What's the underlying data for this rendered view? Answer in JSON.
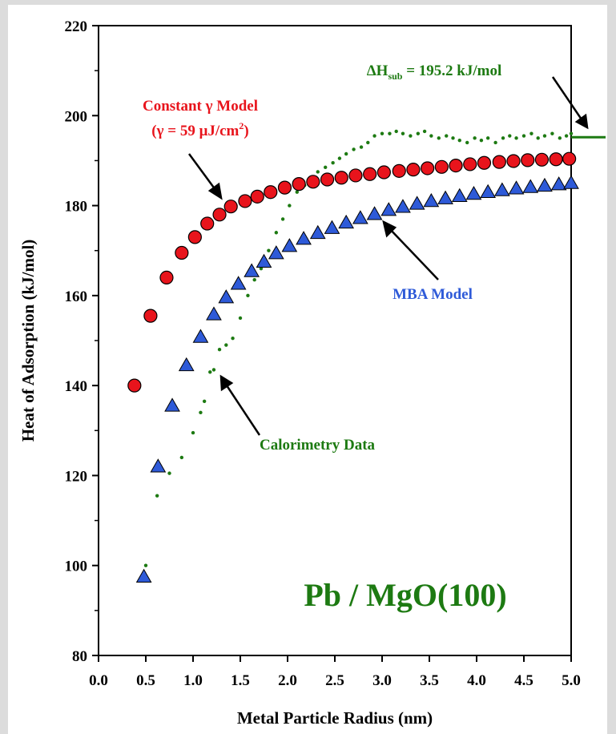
{
  "chart_data": {
    "type": "scatter",
    "xlabel": "Metal Particle Radius (nm)",
    "ylabel": "Heat of Adsorption (kJ/mol)",
    "xlim": [
      0.0,
      5.0
    ],
    "ylim": [
      80,
      220
    ],
    "x_ticks": [
      "0.0",
      "0.5",
      "1.0",
      "1.5",
      "2.0",
      "2.5",
      "3.0",
      "3.5",
      "4.0",
      "4.5",
      "5.0"
    ],
    "y_ticks": [
      "80",
      "100",
      "120",
      "140",
      "160",
      "180",
      "200",
      "220"
    ],
    "grid": false,
    "legend": "none",
    "series": [
      {
        "name": "Constant γ Model",
        "marker": "circle",
        "color": "#e8141c",
        "x": [
          0.38,
          0.55,
          0.72,
          0.88,
          1.02,
          1.15,
          1.28,
          1.4,
          1.55,
          1.68,
          1.82,
          1.97,
          2.12,
          2.27,
          2.42,
          2.57,
          2.72,
          2.87,
          3.02,
          3.18,
          3.33,
          3.48,
          3.63,
          3.78,
          3.93,
          4.08,
          4.24,
          4.39,
          4.54,
          4.69,
          4.84,
          4.98
        ],
        "y": [
          140.0,
          155.5,
          164.0,
          169.5,
          173.0,
          176.0,
          178.0,
          179.8,
          181.0,
          182.0,
          183.0,
          184.0,
          184.8,
          185.3,
          185.8,
          186.2,
          186.7,
          187.0,
          187.4,
          187.7,
          188.0,
          188.3,
          188.6,
          188.9,
          189.2,
          189.5,
          189.7,
          189.9,
          190.1,
          190.2,
          190.3,
          190.4
        ]
      },
      {
        "name": "MBA Model",
        "marker": "triangle",
        "color": "#2e5ad8",
        "x": [
          0.48,
          0.63,
          0.78,
          0.93,
          1.08,
          1.22,
          1.35,
          1.48,
          1.62,
          1.75,
          1.88,
          2.02,
          2.17,
          2.32,
          2.47,
          2.62,
          2.77,
          2.92,
          3.07,
          3.22,
          3.37,
          3.52,
          3.67,
          3.82,
          3.97,
          4.12,
          4.27,
          4.42,
          4.57,
          4.72,
          4.87,
          5.0
        ],
        "y": [
          97.5,
          122.0,
          135.5,
          144.5,
          150.8,
          155.8,
          159.6,
          162.6,
          165.4,
          167.5,
          169.4,
          171.0,
          172.6,
          173.9,
          175.0,
          176.2,
          177.2,
          178.1,
          179.0,
          179.7,
          180.4,
          181.0,
          181.6,
          182.1,
          182.6,
          183.0,
          183.4,
          183.8,
          184.1,
          184.4,
          184.7,
          185.0
        ]
      },
      {
        "name": "Calorimetry Data",
        "marker": "dot",
        "color": "#1d7a12",
        "x": [
          0.5,
          0.62,
          0.75,
          0.88,
          1.0,
          1.08,
          1.12,
          1.18,
          1.22,
          1.28,
          1.35,
          1.42,
          1.5,
          1.58,
          1.65,
          1.72,
          1.8,
          1.88,
          1.95,
          2.02,
          2.1,
          2.18,
          2.25,
          2.32,
          2.4,
          2.48,
          2.55,
          2.62,
          2.7,
          2.78,
          2.85,
          2.92,
          3.0,
          3.08,
          3.15,
          3.22,
          3.3,
          3.38,
          3.45,
          3.52,
          3.6,
          3.68,
          3.75,
          3.82,
          3.9,
          3.98,
          4.05,
          4.12,
          4.2,
          4.28,
          4.35,
          4.42,
          4.5,
          4.58,
          4.65,
          4.72,
          4.8,
          4.88,
          4.95,
          5.0
        ],
        "y": [
          100.0,
          115.5,
          120.5,
          124.0,
          129.5,
          134.0,
          136.5,
          143.0,
          143.5,
          148.0,
          149.0,
          150.5,
          155.0,
          160.0,
          163.5,
          166.0,
          170.0,
          174.0,
          177.0,
          180.0,
          183.0,
          184.5,
          186.0,
          187.5,
          188.5,
          189.5,
          190.5,
          191.5,
          192.5,
          193.0,
          194.0,
          195.5,
          196.0,
          196.0,
          196.5,
          196.0,
          195.5,
          196.0,
          196.5,
          195.5,
          195.0,
          195.5,
          195.0,
          194.5,
          194.0,
          195.0,
          194.5,
          195.0,
          194.0,
          195.0,
          195.5,
          195.0,
          195.5,
          196.0,
          195.0,
          195.5,
          196.0,
          195.0,
          195.5,
          196.0
        ]
      }
    ],
    "reference_line": {
      "label_main": "ΔH",
      "label_sub": "sub",
      "label_rest": " = 195.2 kJ/mol",
      "y": 195.2
    },
    "annotations": {
      "constant_model_line1": "Constant γ Model",
      "constant_model_line2_pre": "(γ = 59 μJ/cm",
      "constant_model_line2_sup": "2",
      "constant_model_line2_post": ")",
      "mba_model": "MBA Model",
      "calorimetry": "Calorimetry Data",
      "system": "Pb / MgO(100)"
    },
    "colors": {
      "constant_model": "#e8141c",
      "mba_model": "#2e5ad8",
      "calorimetry": "#1d7a12"
    }
  }
}
